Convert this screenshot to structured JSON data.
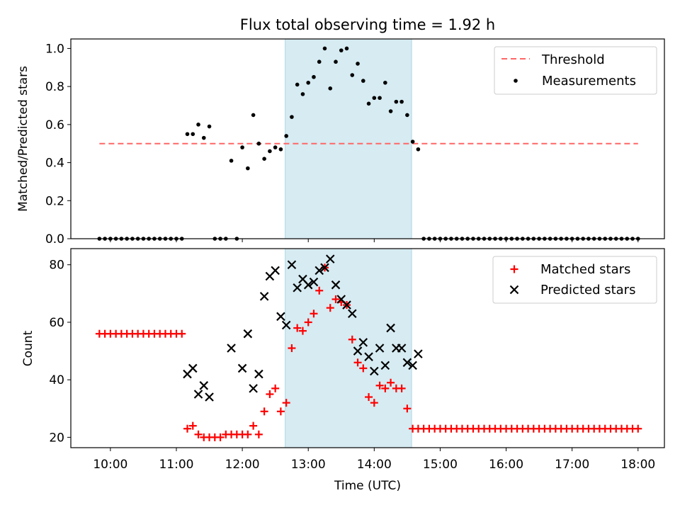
{
  "chart_data": [
    {
      "type": "scatter",
      "title": "Flux total observing time = 1.92 h",
      "xlabel": "",
      "ylabel": "Matched/Predicted stars",
      "ylim": [
        0,
        1.05
      ],
      "yticks": [
        "0.0",
        "0.2",
        "0.4",
        "0.6",
        "0.8",
        "1.0"
      ],
      "ytick_values": [
        0,
        0.2,
        0.4,
        0.6,
        0.8,
        1.0
      ],
      "legend_position": "top-right",
      "highlight_span": {
        "start": "12:39",
        "end": "14:34",
        "color": "#add8e6"
      },
      "threshold": {
        "name": "Threshold",
        "value": 0.5,
        "x_start": "09:50",
        "x_end": "18:00",
        "color": "#ff6666"
      },
      "series": [
        {
          "name": "Measurements",
          "color": "#000000",
          "x": [
            "09:50",
            "09:55",
            "10:00",
            "10:05",
            "10:10",
            "10:15",
            "10:20",
            "10:25",
            "10:30",
            "10:35",
            "10:40",
            "10:45",
            "10:50",
            "10:55",
            "11:00",
            "11:05",
            "11:10",
            "11:15",
            "11:20",
            "11:25",
            "11:30",
            "11:35",
            "11:40",
            "11:45",
            "11:50",
            "11:55",
            "12:00",
            "12:05",
            "12:10",
            "12:15",
            "12:20",
            "12:25",
            "12:30",
            "12:35",
            "12:40",
            "12:45",
            "12:50",
            "12:55",
            "13:00",
            "13:05",
            "13:10",
            "13:15",
            "13:20",
            "13:25",
            "13:30",
            "13:35",
            "13:40",
            "13:45",
            "13:50",
            "13:55",
            "14:00",
            "14:05",
            "14:10",
            "14:15",
            "14:20",
            "14:25",
            "14:30",
            "14:35",
            "14:40",
            "14:45",
            "14:50",
            "14:55",
            "15:00",
            "15:05",
            "15:10",
            "15:15",
            "15:20",
            "15:25",
            "15:30",
            "15:35",
            "15:40",
            "15:45",
            "15:50",
            "15:55",
            "16:00",
            "16:05",
            "16:10",
            "16:15",
            "16:20",
            "16:25",
            "16:30",
            "16:35",
            "16:40",
            "16:45",
            "16:50",
            "16:55",
            "17:00",
            "17:05",
            "17:10",
            "17:15",
            "17:20",
            "17:25",
            "17:30",
            "17:35",
            "17:40",
            "17:45",
            "17:50",
            "17:55",
            "18:00"
          ],
          "values": [
            0,
            0,
            0,
            0,
            0,
            0,
            0,
            0,
            0,
            0,
            0,
            0,
            0,
            0,
            0,
            0,
            0.55,
            0.55,
            0.6,
            0.53,
            0.59,
            0,
            0,
            0,
            0.41,
            0,
            0.48,
            0.37,
            0.65,
            0.5,
            0.42,
            0.46,
            0.48,
            0.47,
            0.54,
            0.64,
            0.81,
            0.76,
            0.82,
            0.85,
            0.93,
            1.0,
            0.79,
            0.93,
            0.99,
            1.0,
            0.86,
            0.92,
            0.83,
            0.71,
            0.74,
            0.74,
            0.82,
            0.67,
            0.72,
            0.72,
            0.65,
            0.51,
            0.47,
            0,
            0,
            0,
            0,
            0,
            0,
            0,
            0,
            0,
            0,
            0,
            0,
            0,
            0,
            0,
            0,
            0,
            0,
            0,
            0,
            0,
            0,
            0,
            0,
            0,
            0,
            0,
            0,
            0,
            0,
            0,
            0,
            0,
            0,
            0,
            0,
            0,
            0,
            0,
            0
          ]
        }
      ]
    },
    {
      "type": "scatter",
      "title": "",
      "xlabel": "Time (UTC)",
      "ylabel": "Count",
      "ylim": [
        16.4,
        85.6
      ],
      "yticks": [
        "20",
        "40",
        "60",
        "80"
      ],
      "ytick_values": [
        20,
        40,
        60,
        80
      ],
      "xlim": [
        "09:24",
        "18:24"
      ],
      "xticks": [
        "10:00",
        "11:00",
        "12:00",
        "13:00",
        "14:00",
        "15:00",
        "16:00",
        "17:00",
        "18:00"
      ],
      "legend_position": "top-right",
      "highlight_span": {
        "start": "12:39",
        "end": "14:34",
        "color": "#add8e6"
      },
      "series": [
        {
          "name": "Matched stars",
          "marker": "plus",
          "color": "#ff0000",
          "x": [
            "09:50",
            "09:55",
            "10:00",
            "10:05",
            "10:10",
            "10:15",
            "10:20",
            "10:25",
            "10:30",
            "10:35",
            "10:40",
            "10:45",
            "10:50",
            "10:55",
            "11:00",
            "11:05",
            "11:10",
            "11:15",
            "11:20",
            "11:25",
            "11:30",
            "11:35",
            "11:40",
            "11:45",
            "11:50",
            "11:55",
            "12:00",
            "12:05",
            "12:10",
            "12:15",
            "12:20",
            "12:25",
            "12:30",
            "12:35",
            "12:40",
            "12:45",
            "12:50",
            "12:55",
            "13:00",
            "13:05",
            "13:10",
            "13:15",
            "13:20",
            "13:25",
            "13:30",
            "13:35",
            "13:40",
            "13:45",
            "13:50",
            "13:55",
            "14:00",
            "14:05",
            "14:10",
            "14:15",
            "14:20",
            "14:25",
            "14:30",
            "14:35",
            "14:40",
            "14:45",
            "14:50",
            "14:55",
            "15:00",
            "15:05",
            "15:10",
            "15:15",
            "15:20",
            "15:25",
            "15:30",
            "15:35",
            "15:40",
            "15:45",
            "15:50",
            "15:55",
            "16:00",
            "16:05",
            "16:10",
            "16:15",
            "16:20",
            "16:25",
            "16:30",
            "16:35",
            "16:40",
            "16:45",
            "16:50",
            "16:55",
            "17:00",
            "17:05",
            "17:10",
            "17:15",
            "17:20",
            "17:25",
            "17:30",
            "17:35",
            "17:40",
            "17:45",
            "17:50",
            "17:55",
            "18:00"
          ],
          "values": [
            56,
            56,
            56,
            56,
            56,
            56,
            56,
            56,
            56,
            56,
            56,
            56,
            56,
            56,
            56,
            56,
            23,
            24,
            21,
            20,
            20,
            20,
            20,
            21,
            21,
            21,
            21,
            21,
            24,
            21,
            29,
            35,
            37,
            29,
            32,
            51,
            58,
            57,
            60,
            63,
            71,
            79,
            65,
            68,
            67,
            66,
            54,
            46,
            44,
            34,
            32,
            38,
            37,
            39,
            37,
            37,
            30,
            23,
            23,
            23,
            23,
            23,
            23,
            23,
            23,
            23,
            23,
            23,
            23,
            23,
            23,
            23,
            23,
            23,
            23,
            23,
            23,
            23,
            23,
            23,
            23,
            23,
            23,
            23,
            23,
            23,
            23,
            23,
            23,
            23,
            23,
            23,
            23,
            23,
            23,
            23,
            23,
            23,
            23
          ]
        },
        {
          "name": "Predicted stars",
          "marker": "x",
          "color": "#000000",
          "x": [
            "11:10",
            "11:15",
            "11:20",
            "11:25",
            "11:30",
            "11:50",
            "12:00",
            "12:05",
            "12:10",
            "12:15",
            "12:20",
            "12:25",
            "12:30",
            "12:35",
            "12:40",
            "12:45",
            "12:50",
            "12:55",
            "13:00",
            "13:05",
            "13:10",
            "13:15",
            "13:20",
            "13:25",
            "13:30",
            "13:35",
            "13:40",
            "13:45",
            "13:50",
            "13:55",
            "14:00",
            "14:05",
            "14:10",
            "14:15",
            "14:20",
            "14:25",
            "14:30",
            "14:35",
            "14:40"
          ],
          "values": [
            42,
            44,
            35,
            38,
            34,
            51,
            44,
            56,
            37,
            42,
            69,
            76,
            78,
            62,
            59,
            80,
            72,
            75,
            73,
            74,
            78,
            79,
            82,
            73,
            68,
            66,
            63,
            50,
            53,
            48,
            43,
            51,
            45,
            58,
            51,
            51,
            46,
            45,
            49
          ]
        }
      ]
    }
  ]
}
